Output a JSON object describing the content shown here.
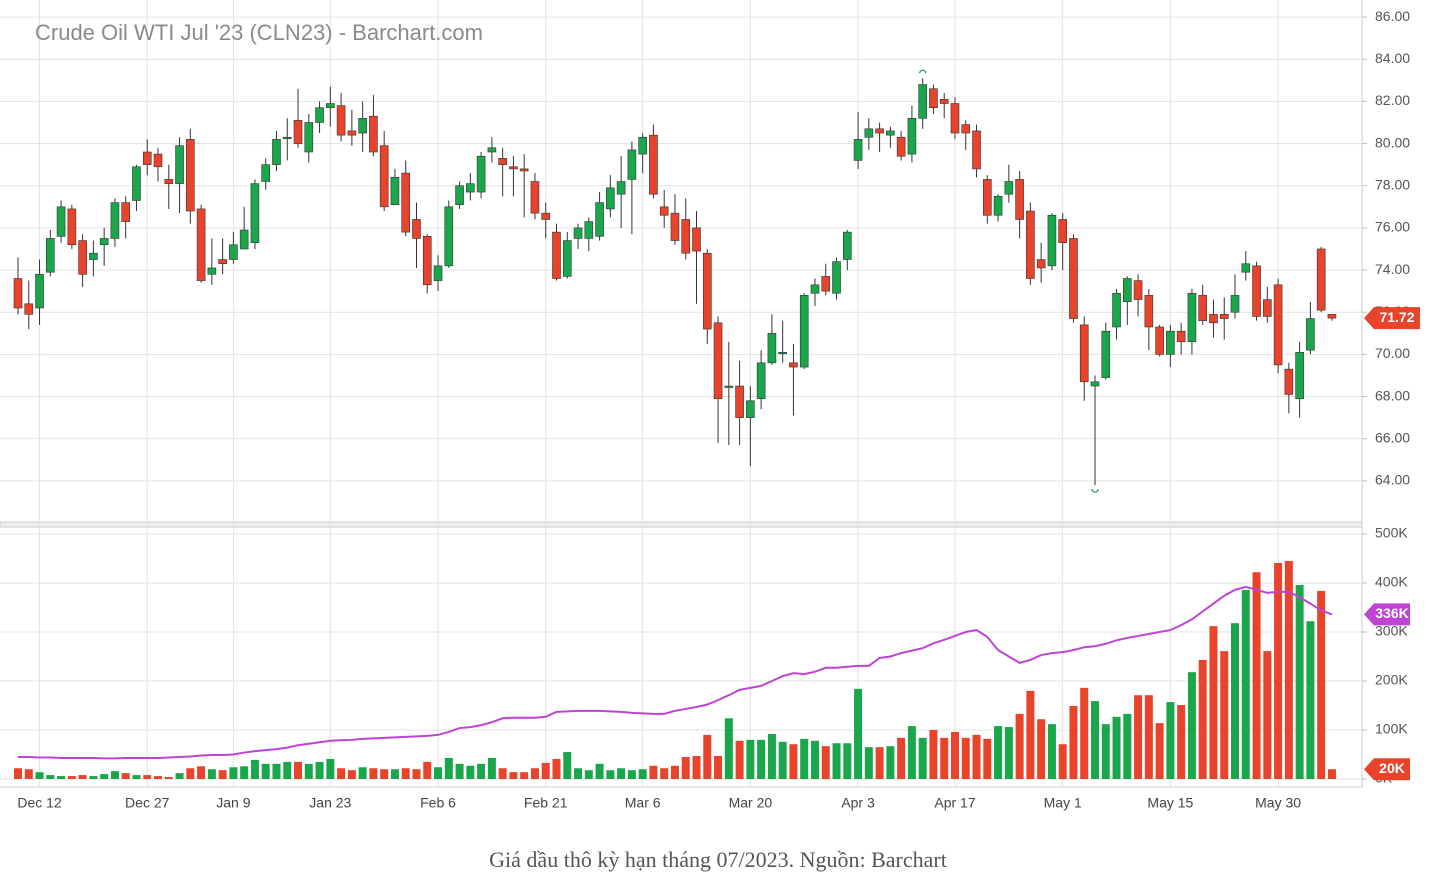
{
  "chart_data": [
    {
      "type": "candlestick",
      "title": "Crude Oil WTI Jul '23 (CLN23) - Barchart.com",
      "categories": [
        null,
        null,
        "Dec 12",
        null,
        null,
        null,
        null,
        null,
        null,
        null,
        null,
        null,
        "Dec 27",
        null,
        null,
        null,
        null,
        null,
        null,
        null,
        "Jan 9",
        null,
        null,
        null,
        null,
        null,
        null,
        null,
        null,
        "Jan 23",
        null,
        null,
        null,
        null,
        null,
        null,
        null,
        null,
        null,
        "Feb 6",
        null,
        null,
        null,
        null,
        null,
        null,
        null,
        null,
        null,
        "Feb 21",
        null,
        null,
        null,
        null,
        null,
        null,
        null,
        null,
        "Mar 6",
        null,
        null,
        null,
        null,
        null,
        null,
        null,
        null,
        null,
        "Mar 20",
        null,
        null,
        null,
        null,
        null,
        null,
        null,
        null,
        null,
        "Apr 3",
        null,
        null,
        null,
        null,
        null,
        null,
        null,
        null,
        "Apr 17",
        null,
        null,
        null,
        null,
        null,
        null,
        null,
        null,
        null,
        "May 1",
        null,
        null,
        null,
        null,
        null,
        null,
        null,
        null,
        null,
        "May 15",
        null,
        null,
        null,
        null,
        null,
        null,
        null,
        null,
        null,
        "May 30",
        null,
        null,
        null,
        null,
        null
      ],
      "open": [
        73.6,
        72.4,
        72.2,
        73.9,
        75.6,
        76.9,
        75.4,
        74.5,
        75.2,
        75.5,
        77.2,
        77.3,
        79.6,
        79.5,
        78.3,
        78.1,
        80.2,
        76.9,
        73.8,
        74.5,
        74.5,
        75.0,
        75.3,
        78.2,
        79.0,
        80.3,
        81.1,
        79.6,
        81.0,
        81.7,
        81.8,
        80.6,
        80.5,
        81.3,
        79.9,
        77.1,
        78.6,
        76.4,
        75.6,
        73.5,
        74.2,
        77.1,
        77.7,
        77.7,
        79.6,
        79.3,
        78.9,
        78.8,
        78.2,
        76.7,
        75.8,
        73.7,
        75.5,
        75.5,
        75.6,
        76.9,
        77.6,
        78.3,
        79.5,
        80.4,
        77.0,
        76.7,
        76.4,
        76.0,
        74.8,
        71.5,
        68.5,
        68.5,
        67.0,
        67.9,
        69.6,
        70.1,
        69.6,
        69.4,
        72.9,
        73.7,
        72.9,
        74.5,
        79.2,
        80.3,
        80.7,
        80.4,
        80.3,
        79.5,
        81.2,
        82.6,
        82.1,
        81.9,
        80.9,
        80.6,
        78.3,
        76.6,
        77.6,
        78.3,
        76.8,
        74.5,
        74.2,
        76.4,
        75.5,
        71.4,
        68.5,
        68.9,
        71.3,
        72.5,
        73.5,
        72.8,
        71.3,
        70.0,
        71.1,
        70.6,
        72.8,
        71.9,
        71.9,
        72.0,
        73.9,
        74.2,
        72.6,
        73.3,
        69.3,
        67.9,
        70.2,
        75.0,
        71.9
      ],
      "high": [
        74.6,
        73.5,
        74.5,
        75.9,
        77.3,
        77.1,
        75.7,
        75.4,
        76.0,
        77.4,
        77.5,
        79.0,
        80.2,
        79.8,
        79.0,
        80.3,
        80.7,
        77.1,
        75.5,
        75.5,
        75.8,
        77.0,
        78.3,
        79.3,
        80.6,
        81.2,
        82.6,
        81.4,
        82.0,
        82.7,
        82.4,
        81.6,
        82.0,
        82.3,
        80.6,
        78.8,
        79.2,
        77.2,
        75.7,
        74.7,
        77.3,
        78.2,
        78.6,
        79.6,
        80.3,
        79.8,
        79.4,
        79.5,
        78.6,
        77.2,
        76.2,
        75.8,
        76.2,
        76.5,
        77.7,
        78.5,
        79.4,
        80.1,
        80.5,
        80.9,
        77.8,
        77.6,
        77.4,
        76.8,
        75.0,
        71.8,
        70.6,
        69.7,
        68.5,
        70.2,
        71.9,
        71.6,
        70.5,
        72.9,
        73.6,
        74.3,
        74.6,
        75.9,
        81.5,
        81.2,
        81.0,
        80.8,
        80.6,
        81.8,
        83.1,
        82.8,
        82.4,
        82.2,
        81.1,
        80.9,
        78.5,
        77.6,
        79.0,
        78.7,
        77.2,
        75.3,
        76.7,
        76.7,
        75.7,
        71.8,
        69.0,
        71.5,
        73.1,
        73.7,
        73.8,
        73.1,
        71.4,
        71.4,
        71.5,
        73.1,
        73.3,
        72.6,
        72.7,
        73.8,
        74.9,
        74.4,
        73.2,
        73.6,
        69.6,
        70.6,
        72.5,
        75.1,
        71.9
      ],
      "low": [
        71.9,
        71.2,
        71.4,
        73.7,
        75.3,
        75.0,
        73.2,
        73.7,
        74.2,
        75.1,
        75.5,
        76.8,
        78.5,
        78.2,
        76.9,
        76.7,
        76.2,
        73.4,
        73.3,
        73.8,
        74.3,
        75.0,
        75.0,
        77.8,
        78.7,
        79.2,
        79.8,
        79.1,
        80.5,
        80.8,
        80.1,
        79.9,
        79.6,
        79.4,
        76.8,
        77.1,
        75.6,
        74.1,
        72.9,
        73.0,
        74.1,
        76.9,
        77.3,
        77.4,
        79.1,
        77.5,
        77.5,
        76.5,
        76.4,
        75.5,
        73.5,
        73.6,
        75.0,
        74.9,
        75.4,
        76.5,
        76.0,
        75.7,
        78.6,
        77.4,
        76.0,
        75.2,
        74.5,
        72.4,
        70.5,
        65.8,
        65.7,
        65.7,
        64.7,
        67.4,
        69.5,
        69.6,
        67.1,
        69.3,
        72.3,
        72.8,
        72.6,
        74.0,
        78.8,
        79.7,
        79.6,
        79.8,
        79.2,
        79.1,
        80.7,
        81.4,
        81.2,
        80.2,
        79.7,
        78.4,
        76.2,
        76.3,
        77.2,
        75.5,
        73.3,
        73.4,
        74.0,
        74.0,
        71.5,
        67.8,
        63.8,
        68.8,
        70.7,
        71.4,
        71.8,
        70.2,
        69.9,
        69.4,
        70.0,
        70.0,
        71.4,
        70.8,
        70.7,
        71.7,
        73.5,
        71.6,
        71.5,
        69.1,
        67.2,
        67.0,
        70.0,
        72.0,
        71.6
      ],
      "close": [
        72.2,
        71.9,
        73.8,
        75.5,
        77.0,
        75.2,
        73.8,
        74.8,
        75.5,
        77.2,
        76.3,
        78.9,
        79.0,
        78.9,
        78.1,
        79.9,
        76.8,
        73.5,
        74.1,
        74.3,
        75.2,
        75.9,
        78.1,
        79.0,
        80.2,
        80.3,
        80.0,
        81.0,
        81.7,
        81.9,
        80.4,
        80.4,
        81.2,
        79.6,
        77.0,
        78.4,
        75.8,
        75.5,
        73.3,
        74.2,
        77.0,
        78.0,
        78.1,
        79.4,
        79.8,
        79.0,
        78.8,
        78.7,
        76.7,
        76.4,
        73.6,
        75.4,
        76.0,
        76.3,
        77.2,
        77.9,
        78.2,
        79.7,
        80.3,
        77.6,
        76.6,
        75.4,
        74.8,
        74.9,
        71.2,
        67.9,
        68.5,
        67.0,
        67.8,
        69.6,
        71.0,
        70.1,
        69.4,
        72.8,
        73.3,
        73.0,
        74.4,
        75.8,
        80.2,
        80.7,
        80.5,
        80.6,
        79.4,
        81.2,
        82.8,
        81.7,
        81.9,
        80.5,
        80.5,
        78.8,
        76.6,
        77.5,
        78.2,
        76.4,
        73.6,
        74.1,
        76.6,
        75.3,
        71.7,
        68.7,
        68.7,
        71.1,
        72.9,
        73.6,
        72.6,
        71.3,
        70.0,
        71.1,
        70.6,
        72.9,
        71.6,
        71.5,
        71.7,
        72.8,
        74.3,
        71.8,
        71.8,
        69.5,
        68.1,
        70.1,
        71.7,
        72.1,
        71.72
      ],
      "up_color": "#1aa64a",
      "down_color": "#e8432b",
      "mark_extremes": true,
      "ylim": [
        62.05,
        86.81
      ],
      "yticks": [
        {
          "value": 64,
          "label": "64.00"
        },
        {
          "value": 66,
          "label": "66.00"
        },
        {
          "value": 68,
          "label": "68.00"
        },
        {
          "value": 70,
          "label": "70.00"
        },
        {
          "value": 72,
          "label": "72.00"
        },
        {
          "value": 74,
          "label": "74.00"
        },
        {
          "value": 76,
          "label": "76.00"
        },
        {
          "value": 78,
          "label": "78.00"
        },
        {
          "value": 80,
          "label": "80.00"
        },
        {
          "value": 82,
          "label": "82.00"
        },
        {
          "value": 84,
          "label": "84.00"
        },
        {
          "value": 86,
          "label": "86.00"
        }
      ],
      "grid": true,
      "price_tag": 71.72
    },
    {
      "type": "volume",
      "values": [
        22000,
        20000,
        14000,
        8000,
        6000,
        6000,
        8000,
        6000,
        10000,
        16000,
        12000,
        8000,
        8000,
        6000,
        4000,
        12000,
        22000,
        26000,
        20000,
        18000,
        24000,
        26000,
        39000,
        31000,
        31000,
        35000,
        35000,
        31000,
        35000,
        41000,
        22000,
        18000,
        24000,
        22000,
        20000,
        20000,
        22000,
        20000,
        35000,
        24000,
        43000,
        31000,
        27000,
        31000,
        43000,
        22000,
        14000,
        14000,
        22000,
        33000,
        41000,
        55000,
        22000,
        18000,
        31000,
        18000,
        22000,
        18000,
        20000,
        27000,
        22000,
        27000,
        45000,
        47000,
        90000,
        47000,
        124000,
        78000,
        80000,
        80000,
        92000,
        76000,
        71000,
        82000,
        78000,
        67000,
        73000,
        73000,
        184000,
        65000,
        65000,
        67000,
        84000,
        108000,
        84000,
        100000,
        84000,
        96000,
        84000,
        90000,
        82000,
        108000,
        106000,
        133000,
        180000,
        122000,
        112000,
        71000,
        149000,
        186000,
        159000,
        112000,
        127000,
        133000,
        171000,
        171000,
        114000,
        157000,
        151000,
        218000,
        243000,
        312000,
        261000,
        318000,
        386000,
        422000,
        261000,
        441000,
        445000,
        396000,
        322000,
        384000,
        20000
      ],
      "ma_values": [
        45000,
        45000,
        44000,
        44000,
        43000,
        43000,
        43000,
        43000,
        42000,
        42000,
        43000,
        43000,
        43000,
        43000,
        44000,
        45000,
        46000,
        48000,
        49000,
        49000,
        50000,
        54000,
        57000,
        59000,
        61000,
        64000,
        69000,
        72000,
        75000,
        78000,
        79000,
        80000,
        82000,
        83000,
        84000,
        85000,
        86000,
        87000,
        88000,
        90000,
        96000,
        104000,
        106000,
        110000,
        116000,
        124000,
        125000,
        125000,
        125000,
        127000,
        137000,
        138000,
        139000,
        139000,
        139000,
        138000,
        137000,
        135000,
        134000,
        133000,
        133000,
        139000,
        143000,
        147000,
        152000,
        161000,
        171000,
        182000,
        186000,
        190000,
        200000,
        210000,
        216000,
        214000,
        219000,
        227000,
        227000,
        229000,
        231000,
        231000,
        247000,
        250000,
        257000,
        262000,
        267000,
        277000,
        284000,
        292000,
        300000,
        304000,
        290000,
        263000,
        250000,
        237000,
        243000,
        253000,
        257000,
        259000,
        263000,
        269000,
        271000,
        276000,
        283000,
        288000,
        292000,
        296000,
        300000,
        304000,
        314000,
        326000,
        342000,
        358000,
        374000,
        386000,
        392000,
        386000,
        380000,
        382000,
        382000,
        371000,
        358000,
        344000,
        336000
      ],
      "ma_color": "#c044d4",
      "ylim": [
        -16300,
        514300
      ],
      "yticks": [
        {
          "value": 0,
          "label": "0K"
        },
        {
          "value": 100000,
          "label": "100K"
        },
        {
          "value": 200000,
          "label": "200K"
        },
        {
          "value": 300000,
          "label": "300K"
        },
        {
          "value": 400000,
          "label": "400K"
        },
        {
          "value": 500000,
          "label": "500K"
        }
      ],
      "grid": true,
      "value_tags": [
        {
          "value": 336000,
          "label": "336K",
          "color": "#c044d4"
        },
        {
          "value": 20000,
          "label": "20K",
          "color": "#e8432b"
        }
      ]
    }
  ],
  "caption": "Giá dầu thô kỳ hạn tháng 07/2023. Nguồn: Barchart"
}
